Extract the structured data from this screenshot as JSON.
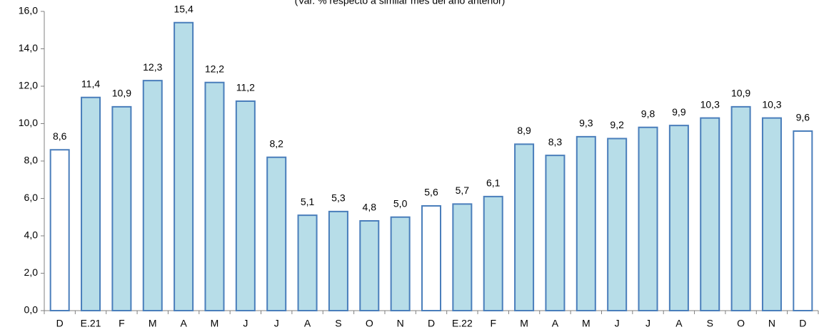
{
  "chart_data": {
    "type": "bar",
    "subtitle": "(Var. % respecto a similar mes del año anterior)",
    "categories": [
      "D",
      "E.21",
      "F",
      "M",
      "A",
      "M",
      "J",
      "J",
      "A",
      "S",
      "O",
      "N",
      "D",
      "E.22",
      "F",
      "M",
      "A",
      "M",
      "J",
      "J",
      "A",
      "S",
      "O",
      "N",
      "D"
    ],
    "values": [
      8.6,
      11.4,
      10.9,
      12.3,
      15.4,
      12.2,
      11.2,
      8.2,
      5.1,
      5.3,
      4.8,
      5.0,
      5.6,
      5.7,
      6.1,
      8.9,
      8.3,
      9.3,
      9.2,
      9.8,
      9.9,
      10.3,
      10.9,
      10.3,
      9.6
    ],
    "value_labels": [
      "8,6",
      "11,4",
      "10,9",
      "12,3",
      "15,4",
      "12,2",
      "11,2",
      "8,2",
      "5,1",
      "5,3",
      "4,8",
      "5,0",
      "5,6",
      "5,7",
      "6,1",
      "8,9",
      "8,3",
      "9,3",
      "9,2",
      "9,8",
      "9,9",
      "10,3",
      "10,9",
      "10,3",
      "9,6"
    ],
    "colors": [
      "#ffffff",
      "#b7dde8",
      "#b7dde8",
      "#b7dde8",
      "#b7dde8",
      "#b7dde8",
      "#b7dde8",
      "#b7dde8",
      "#b7dde8",
      "#b7dde8",
      "#b7dde8",
      "#b7dde8",
      "#ffffff",
      "#b7dde8",
      "#b7dde8",
      "#b7dde8",
      "#b7dde8",
      "#b7dde8",
      "#b7dde8",
      "#b7dde8",
      "#b7dde8",
      "#b7dde8",
      "#b7dde8",
      "#b7dde8",
      "#ffffff"
    ],
    "edge_color": "#4a7ebb",
    "ylim": [
      0,
      16
    ],
    "yticks": [
      {
        "value": 0,
        "label": "0,0"
      },
      {
        "value": 2,
        "label": "2,0"
      },
      {
        "value": 4,
        "label": "4,0"
      },
      {
        "value": 6,
        "label": "6,0"
      },
      {
        "value": 8,
        "label": "8,0"
      },
      {
        "value": 10,
        "label": "10,0"
      },
      {
        "value": 12,
        "label": "12,0"
      },
      {
        "value": 14,
        "label": "14,0"
      },
      {
        "value": 16,
        "label": "16,0"
      }
    ],
    "grid": false
  }
}
